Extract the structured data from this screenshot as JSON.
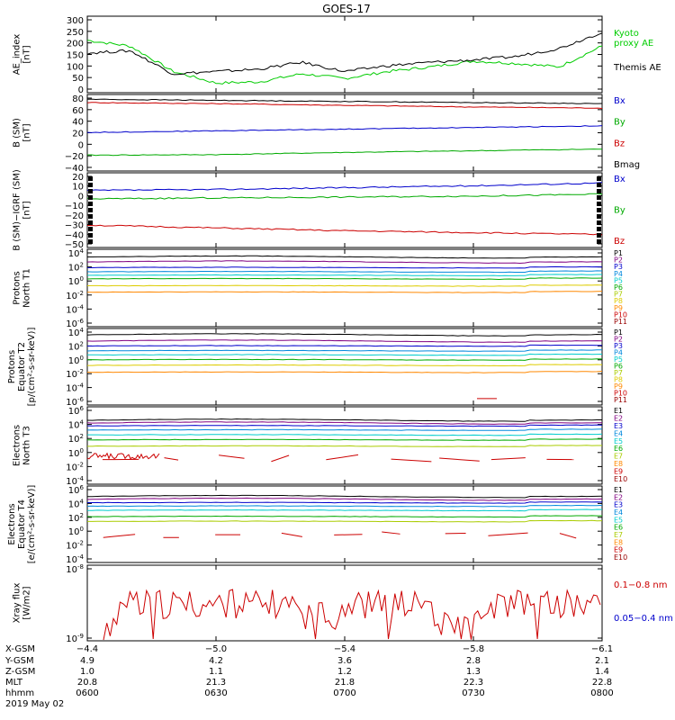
{
  "title": "GOES-17",
  "panels": [
    {
      "ylabel": [
        "AE_index",
        "[nT]"
      ],
      "yticks": [
        "300",
        "250",
        "200",
        "150",
        "100",
        "50",
        "0"
      ],
      "legend": [
        {
          "text": "Kyoto",
          "color": "#00cc00"
        },
        {
          "text": "proxy AE",
          "color": "#00cc00"
        },
        {
          "text": "Themis AE",
          "color": "#000000"
        }
      ]
    },
    {
      "ylabel": [
        "B (SM)",
        "[nT]"
      ],
      "yticks": [
        "80",
        "60",
        "40",
        "20",
        "0",
        "−20",
        "−40"
      ],
      "legend": [
        {
          "text": "Bx",
          "color": "#0000cc"
        },
        {
          "text": "By",
          "color": "#00aa00"
        },
        {
          "text": "Bz",
          "color": "#cc0000"
        },
        {
          "text": "Bmag",
          "color": "#000000"
        }
      ]
    },
    {
      "ylabel": [
        "B (SM)−IGRF (SM)",
        "[nT]"
      ],
      "yticks": [
        "20",
        "10",
        "0",
        "−10",
        "−20",
        "−30",
        "−40",
        "−50"
      ],
      "legend": [
        {
          "text": "Bx",
          "color": "#0000cc"
        },
        {
          "text": "By",
          "color": "#00aa00"
        },
        {
          "text": "Bz",
          "color": "#cc0000"
        }
      ]
    },
    {
      "ylabel": [
        "Protons",
        "North T1"
      ],
      "yticks": [
        "10^4",
        "10^2",
        "10^0",
        "10^-2",
        "10^-4",
        "10^-6"
      ],
      "legend": [
        {
          "text": "P1",
          "color": "#000000"
        },
        {
          "text": "P2",
          "color": "#800080"
        },
        {
          "text": "P3",
          "color": "#0000cc"
        },
        {
          "text": "P4",
          "color": "#0088dd"
        },
        {
          "text": "P5",
          "color": "#00cccc"
        },
        {
          "text": "P6",
          "color": "#00aa00"
        },
        {
          "text": "P7",
          "color": "#aacc00"
        },
        {
          "text": "P8",
          "color": "#ddcc00"
        },
        {
          "text": "P9",
          "color": "#ff8800"
        },
        {
          "text": "P10",
          "color": "#cc0000"
        },
        {
          "text": "P11",
          "color": "#990000"
        }
      ]
    },
    {
      "ylabel": [
        "Protons",
        "Equator T2",
        "[p/(cm²-s-sr-keV)]"
      ],
      "yticks": [
        "10^4",
        "10^2",
        "10^0",
        "10^-2",
        "10^-4",
        "10^-6"
      ],
      "legend": [
        {
          "text": "P1",
          "color": "#000000"
        },
        {
          "text": "P2",
          "color": "#800080"
        },
        {
          "text": "P3",
          "color": "#0000cc"
        },
        {
          "text": "P4",
          "color": "#0088dd"
        },
        {
          "text": "P5",
          "color": "#00cccc"
        },
        {
          "text": "P6",
          "color": "#00aa00"
        },
        {
          "text": "P7",
          "color": "#aacc00"
        },
        {
          "text": "P8",
          "color": "#ddcc00"
        },
        {
          "text": "P9",
          "color": "#ff8800"
        },
        {
          "text": "P10",
          "color": "#cc0000"
        },
        {
          "text": "P11",
          "color": "#990000"
        }
      ]
    },
    {
      "ylabel": [
        "Electrons",
        "North T3"
      ],
      "yticks": [
        "10^6",
        "10^4",
        "10^2",
        "10^0",
        "10^-2",
        "10^-4"
      ],
      "legend": [
        {
          "text": "E1",
          "color": "#000000"
        },
        {
          "text": "E2",
          "color": "#800080"
        },
        {
          "text": "E3",
          "color": "#0000cc"
        },
        {
          "text": "E4",
          "color": "#0088dd"
        },
        {
          "text": "E5",
          "color": "#00cccc"
        },
        {
          "text": "E6",
          "color": "#00aa00"
        },
        {
          "text": "E7",
          "color": "#aacc00"
        },
        {
          "text": "E8",
          "color": "#ff8800"
        },
        {
          "text": "E9",
          "color": "#cc0000"
        },
        {
          "text": "E10",
          "color": "#990000"
        }
      ]
    },
    {
      "ylabel": [
        "Electrons",
        "Equator T4",
        "[e/(cm²-s-sr-keV)]"
      ],
      "yticks": [
        "10^6",
        "10^4",
        "10^2",
        "10^0",
        "10^-2",
        "10^-4"
      ],
      "legend": [
        {
          "text": "E1",
          "color": "#000000"
        },
        {
          "text": "E2",
          "color": "#800080"
        },
        {
          "text": "E3",
          "color": "#0000cc"
        },
        {
          "text": "E4",
          "color": "#0088dd"
        },
        {
          "text": "E5",
          "color": "#00cccc"
        },
        {
          "text": "E6",
          "color": "#00aa00"
        },
        {
          "text": "E7",
          "color": "#aacc00"
        },
        {
          "text": "E8",
          "color": "#ff8800"
        },
        {
          "text": "E9",
          "color": "#cc0000"
        },
        {
          "text": "E10",
          "color": "#990000"
        }
      ]
    },
    {
      "ylabel": [
        "Xray flux",
        "[W/m2]"
      ],
      "yticks": [
        "10^-8",
        "10^-9"
      ],
      "legend": [
        {
          "text": "0.1−0.8 nm",
          "color": "#cc0000"
        },
        {
          "text": "0.05−0.4 nm",
          "color": "#0000cc"
        }
      ]
    }
  ],
  "xaxis": {
    "labels": [
      "X-GSM",
      "Y-GSM",
      "Z-GSM",
      "MLT",
      "hhmm"
    ],
    "columns": [
      [
        "−4.4",
        "4.9",
        "1.0",
        "20.8",
        "0600"
      ],
      [
        "−5.0",
        "4.2",
        "1.1",
        "21.3",
        "0630"
      ],
      [
        "−5.4",
        "3.6",
        "1.2",
        "21.8",
        "0700"
      ],
      [
        "−5.8",
        "2.8",
        "1.3",
        "22.3",
        "0730"
      ],
      [
        "−6.1",
        "2.1",
        "1.4",
        "22.8",
        "0800"
      ]
    ],
    "date": "2019 May 02"
  },
  "chart_data": [
    {
      "type": "line",
      "panel": "AE_index",
      "x_hhmm": [
        "0600",
        "0610",
        "0620",
        "0630",
        "0640",
        "0650",
        "0700",
        "0710",
        "0720",
        "0730",
        "0740",
        "0750",
        "0800"
      ],
      "series": [
        {
          "name": "Kyoto proxy AE",
          "color": "#00cc00",
          "values": [
            215,
            190,
            80,
            30,
            35,
            70,
            50,
            80,
            100,
            125,
            115,
            100,
            190
          ]
        },
        {
          "name": "Themis AE",
          "color": "#000000",
          "values": [
            160,
            170,
            70,
            80,
            90,
            120,
            80,
            105,
            120,
            130,
            145,
            180,
            250
          ]
        }
      ],
      "ylim": [
        0,
        300
      ]
    },
    {
      "type": "line",
      "panel": "B (SM)",
      "x_hhmm": [
        "0600",
        "0630",
        "0700",
        "0730",
        "0800"
      ],
      "series": [
        {
          "name": "Bx",
          "color": "#0000cc",
          "values": [
            18,
            21,
            24,
            27,
            30
          ]
        },
        {
          "name": "By",
          "color": "#00aa00",
          "values": [
            -23,
            -22,
            -18,
            -15,
            -12
          ]
        },
        {
          "name": "Bz",
          "color": "#cc0000",
          "values": [
            72,
            70,
            67,
            64,
            62
          ]
        },
        {
          "name": "Bmag",
          "color": "#000000",
          "values": [
            78,
            76,
            74,
            72,
            70
          ]
        }
      ],
      "ylim": [
        -45,
        80
      ]
    },
    {
      "type": "line",
      "panel": "B (SM)-IGRF (SM)",
      "x_hhmm": [
        "0600",
        "0630",
        "0700",
        "0730",
        "0800"
      ],
      "series": [
        {
          "name": "Bx",
          "color": "#0000cc",
          "values": [
            5,
            6,
            8,
            10,
            13
          ]
        },
        {
          "name": "By",
          "color": "#00aa00",
          "values": [
            -4,
            -3,
            -2,
            -1,
            1
          ]
        },
        {
          "name": "Bz",
          "color": "#cc0000",
          "values": [
            -32,
            -35,
            -38,
            -40,
            -42
          ]
        }
      ],
      "ylim": [
        -52,
        20
      ]
    },
    {
      "type": "line",
      "panel": "Protons North T1",
      "log": true,
      "series_log10": [
        3.4,
        2.7,
        1.9,
        1.3,
        0.8,
        0.3,
        -0.7,
        -1.6
      ]
    },
    {
      "type": "line",
      "panel": "Protons Equator T2",
      "log": true,
      "series_log10": [
        3.6,
        2.7,
        2.0,
        1.3,
        0.7,
        0.0,
        -0.8,
        -1.8
      ]
    },
    {
      "type": "line",
      "panel": "Electrons North T3",
      "log": true,
      "series_log10": [
        4.6,
        4.2,
        3.8,
        3.2,
        2.5,
        1.8,
        0.9,
        -0.8
      ]
    },
    {
      "type": "line",
      "panel": "Electrons Equator T4",
      "log": true,
      "series_log10": [
        5.0,
        4.6,
        4.1,
        3.6,
        3.0,
        2.1,
        1.4,
        -0.5
      ]
    },
    {
      "type": "line",
      "panel": "Xray flux",
      "series": [
        {
          "name": "0.1-0.8 nm",
          "color": "#cc0000"
        }
      ],
      "ylim_log10": [
        -9.3,
        -8
      ]
    }
  ]
}
